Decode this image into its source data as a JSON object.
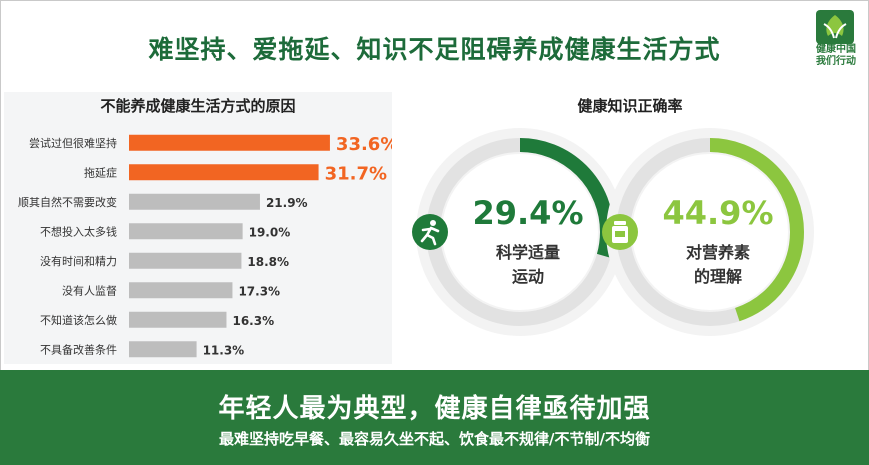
{
  "header": {
    "title": "难坚持、爱拖延、知识不足阻碍养成健康生活方式",
    "logo_text_line1": "健康中国",
    "logo_text_line2": "我们行动"
  },
  "colors": {
    "brand_green": "#2a7a3c",
    "highlight_orange": "#f26522",
    "neutral_bar": "#bdbdbd",
    "ring_gray": "#e2e2e2",
    "ring_dark_green": "#1f7a3a",
    "ring_light_green": "#8cc63f"
  },
  "chart_data": [
    {
      "type": "bar",
      "orientation": "horizontal",
      "title": "不能养成健康生活方式的原因",
      "categories": [
        "尝试过但很难坚持",
        "拖延症",
        "顺其自然不需要改变",
        "不想投入太多钱",
        "没有时间和精力",
        "没有人监督",
        "不知道该怎么做",
        "不具备改善条件"
      ],
      "values": [
        33.6,
        31.7,
        21.9,
        19.0,
        18.8,
        17.3,
        16.3,
        11.3
      ],
      "labels": [
        "33.6%",
        "31.7%",
        "21.9%",
        "19.0%",
        "18.8%",
        "17.3%",
        "16.3%",
        "11.3%"
      ],
      "highlighted": [
        true,
        true,
        false,
        false,
        false,
        false,
        false,
        false
      ],
      "unit": "%",
      "xlim": [
        0,
        40
      ]
    },
    {
      "type": "pie",
      "style": "donut",
      "title": "健康知识正确率",
      "items": [
        {
          "value": 29.4,
          "value_label": "29.4%",
          "label_line1": "科学适量",
          "label_line2": "运动",
          "icon": "running-person-icon",
          "color": "#1f7a3a"
        },
        {
          "value": 44.9,
          "value_label": "44.9%",
          "label_line1": "对营养素",
          "label_line2": "的理解",
          "icon": "supplement-bottle-icon",
          "color": "#8cc63f"
        }
      ]
    }
  ],
  "footer": {
    "headline": "年轻人最为典型，健康自律亟待加强",
    "subline": "最难坚持吃早餐、最容易久坐不起、饮食最不规律/不节制/不均衡"
  }
}
